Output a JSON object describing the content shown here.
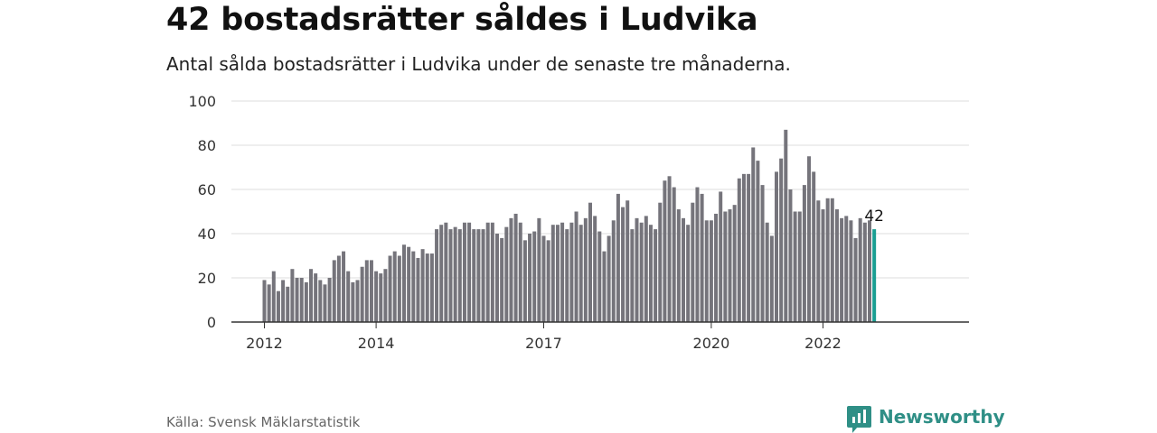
{
  "title": "42 bostadsrätter såldes i Ludvika",
  "subtitle": "Antal sålda bostadsrätter i Ludvika under de senaste tre månaderna.",
  "source": "Källa: Svensk Mäklarstatistik",
  "brand": "Newsworthy",
  "colors": {
    "bar": "#75747b",
    "highlight": "#1a9e92",
    "grid": "#dddddd",
    "axis": "#333333",
    "brand": "#2f8f86"
  },
  "chart_data": {
    "type": "bar",
    "ylim": [
      0,
      100
    ],
    "yticks": [
      0,
      20,
      40,
      60,
      80,
      100
    ],
    "xticks": [
      {
        "label": "2012",
        "bar": 0
      },
      {
        "label": "2014",
        "bar": 24
      },
      {
        "label": "2017",
        "bar": 60
      },
      {
        "label": "2020",
        "bar": 96
      },
      {
        "label": "2022",
        "bar": 120
      }
    ],
    "values": [
      19,
      17,
      23,
      14,
      19,
      16,
      24,
      20,
      20,
      18,
      24,
      22,
      19,
      17,
      20,
      28,
      30,
      32,
      23,
      18,
      19,
      25,
      28,
      28,
      23,
      22,
      24,
      30,
      32,
      30,
      35,
      34,
      32,
      29,
      33,
      31,
      31,
      42,
      44,
      45,
      42,
      43,
      42,
      45,
      45,
      42,
      42,
      42,
      45,
      45,
      40,
      38,
      43,
      47,
      49,
      45,
      37,
      40,
      41,
      47,
      39,
      37,
      44,
      44,
      45,
      42,
      45,
      50,
      44,
      47,
      54,
      48,
      41,
      32,
      39,
      46,
      58,
      52,
      55,
      42,
      47,
      45,
      48,
      44,
      42,
      54,
      64,
      66,
      61,
      51,
      47,
      44,
      54,
      61,
      58,
      46,
      46,
      49,
      59,
      50,
      51,
      53,
      65,
      67,
      67,
      79,
      73,
      62,
      45,
      39,
      68,
      74,
      87,
      60,
      50,
      50,
      62,
      75,
      68,
      55,
      51,
      56,
      56,
      51,
      47,
      48,
      46,
      38,
      47,
      45,
      46,
      42
    ],
    "highlight_label": "42"
  }
}
